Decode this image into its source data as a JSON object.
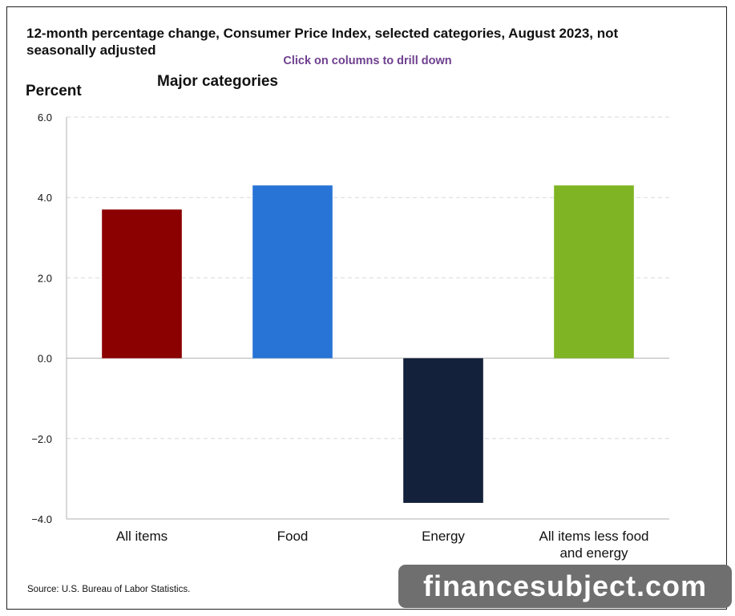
{
  "header": {
    "title": "12-month percentage change, Consumer Price Index, selected categories, August 2023, not seasonally adjusted",
    "hint": "Click on columns to drill down"
  },
  "footer": {
    "source": "Source: U.S. Bureau of Labor Statistics."
  },
  "watermark": {
    "text": "financesubject.com"
  },
  "chart_data": {
    "type": "bar",
    "title": "Major categories",
    "ylabel": "Percent",
    "xlabel": "",
    "ylim": [
      -4.0,
      6.0
    ],
    "yticks": [
      6.0,
      4.0,
      2.0,
      0.0,
      -2.0,
      -4.0
    ],
    "ytick_labels": [
      "6.0",
      "4.0",
      "2.0",
      "0.0",
      "−2.0",
      "−4.0"
    ],
    "grid": true,
    "categories": [
      "All items",
      "Food",
      "Energy",
      "All items less food and energy"
    ],
    "category_lines": [
      [
        "All items"
      ],
      [
        "Food"
      ],
      [
        "Energy"
      ],
      [
        "All items less food",
        "and energy"
      ]
    ],
    "values": [
      3.7,
      4.3,
      -3.6,
      4.3
    ],
    "colors": [
      "#8b0000",
      "#2874d6",
      "#13213a",
      "#7fb424"
    ]
  }
}
